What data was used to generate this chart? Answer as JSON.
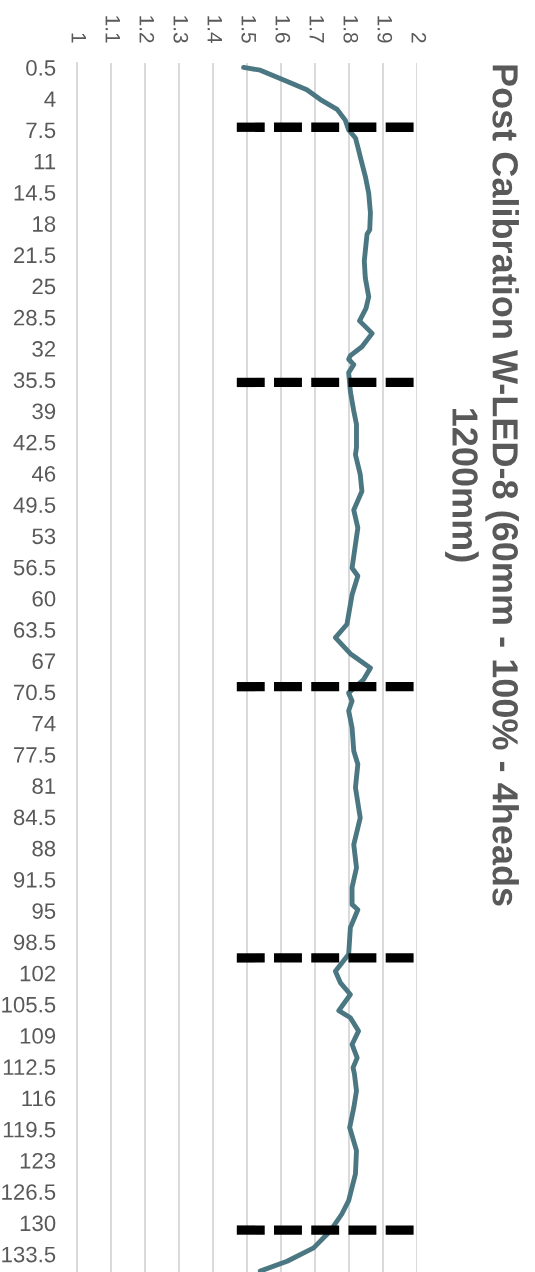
{
  "chart_data": {
    "type": "line",
    "title": "Post Calibration W-LED-8 (60mm - 100% - 4heads 1200mm)",
    "xlim": [
      1,
      2
    ],
    "xticks": [
      1,
      1.1,
      1.2,
      1.3,
      1.4,
      1.5,
      1.6,
      1.7,
      1.8,
      1.9,
      2
    ],
    "ylim": [
      135.5,
      0
    ],
    "yticks": [
      0.5,
      4,
      7.5,
      11,
      14.5,
      18,
      21.5,
      25,
      28.5,
      32,
      35.5,
      39,
      42.5,
      46,
      49.5,
      53,
      56.5,
      60,
      63.5,
      67,
      70.5,
      74,
      77.5,
      81,
      84.5,
      88,
      91.5,
      95,
      98.5,
      102,
      105.5,
      109,
      112.5,
      116,
      119.5,
      123,
      126.5,
      130,
      133.5
    ],
    "grid": "x",
    "series": [
      {
        "color": "#4a7781",
        "x": [
          1.49,
          1.539,
          1.608,
          1.676,
          1.716,
          1.765,
          1.789,
          1.799,
          1.819,
          1.828,
          1.835,
          1.848,
          1.858,
          1.863,
          1.861,
          1.853,
          1.845,
          1.848,
          1.858,
          1.85,
          1.831,
          1.868,
          1.838,
          1.804,
          1.799,
          1.814,
          1.799,
          1.804,
          1.814,
          1.822,
          1.822,
          1.819,
          1.833,
          1.838,
          1.814,
          1.826,
          1.809,
          1.826,
          1.809,
          1.794,
          1.76,
          1.804,
          1.863,
          1.843,
          1.799,
          1.809,
          1.799,
          1.809,
          1.814,
          1.826,
          1.819,
          1.833,
          1.814,
          1.822,
          1.809,
          1.809,
          1.826,
          1.804,
          1.799,
          1.76,
          1.775,
          1.804,
          1.77,
          1.804,
          1.828,
          1.809,
          1.824,
          1.812,
          1.816,
          1.822,
          1.814,
          1.802,
          1.822,
          1.819,
          1.799,
          1.779,
          1.745,
          1.696,
          1.618,
          1.539
        ],
        "values": [
          0.5,
          0.8,
          1.9,
          3.0,
          4.1,
          5.2,
          6.4,
          7.5,
          8.4,
          9.7,
          10.8,
          12.7,
          14.6,
          16.8,
          18.7,
          19.2,
          22.2,
          24.1,
          26.2,
          27.5,
          28.9,
          30.3,
          31.8,
          32.8,
          33.2,
          33.8,
          34.7,
          36.8,
          39.0,
          40.5,
          43.1,
          43.9,
          46.1,
          48.0,
          50.1,
          52.1,
          56.6,
          57.5,
          59.6,
          62.9,
          64.4,
          66.2,
          67.8,
          69.1,
          70.6,
          71.5,
          72.6,
          74.5,
          77.1,
          78.6,
          81.2,
          84.6,
          87.6,
          90.2,
          92.4,
          94.3,
          94.9,
          96.9,
          99.9,
          101.8,
          103.1,
          104.4,
          106.2,
          107.0,
          108.5,
          110.0,
          111.5,
          112.6,
          113.3,
          115.2,
          117.1,
          119.3,
          121.9,
          124.5,
          127.5,
          129.0,
          130.9,
          132.8,
          134.3,
          135.4
        ]
      },
      {
        "color": "#000000",
        "line_style": "dashed",
        "x": [
          1.47,
          1.99
        ],
        "values": [
          7.2,
          7.2
        ]
      },
      {
        "color": "#000000",
        "line_style": "dashed",
        "x": [
          1.47,
          1.99
        ],
        "values": [
          35.8,
          35.8
        ]
      },
      {
        "color": "#000000",
        "line_style": "dashed",
        "x": [
          1.47,
          1.99
        ],
        "values": [
          69.9,
          69.9
        ]
      },
      {
        "color": "#000000",
        "line_style": "dashed",
        "x": [
          1.47,
          1.99
        ],
        "values": [
          100.3,
          100.3
        ]
      },
      {
        "color": "#000000",
        "line_style": "dashed",
        "x": [
          1.47,
          1.99
        ],
        "values": [
          130.8,
          130.8
        ]
      }
    ]
  }
}
